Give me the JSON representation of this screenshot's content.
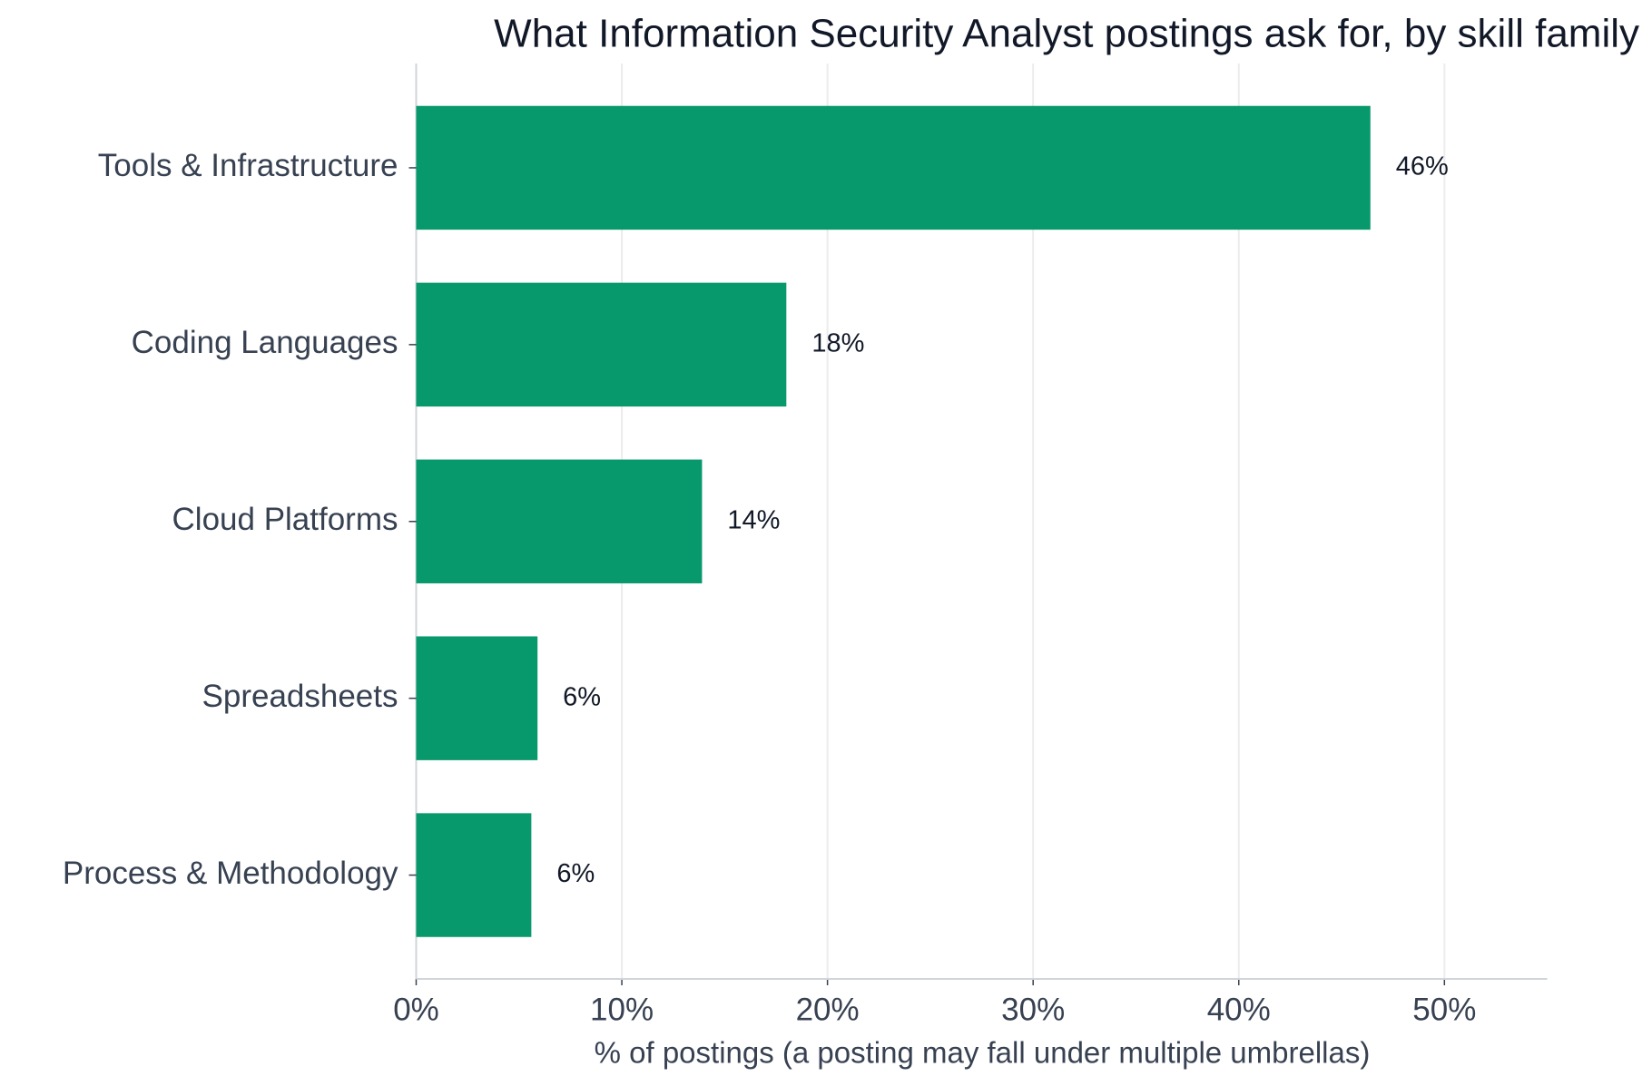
{
  "chart_data": {
    "type": "barh",
    "title": "What Information Security Analyst postings ask for, by skill family",
    "x_label": "% of postings (a posting may fall under multiple umbrellas)",
    "categories": [
      "Tools & Infrastructure",
      "Coding Languages",
      "Cloud Platforms",
      "Spreadsheets",
      "Process & Methodology"
    ],
    "values": [
      46.4,
      18.0,
      13.9,
      5.9,
      5.6
    ],
    "value_labels": [
      "46%",
      "18%",
      "14%",
      "6%",
      "6%"
    ],
    "color": "#07986b",
    "xlim": [
      0,
      55
    ],
    "xticks": [
      {
        "value": 0,
        "label": "0%"
      },
      {
        "value": 10,
        "label": "10%"
      },
      {
        "value": 20,
        "label": "20%"
      },
      {
        "value": 30,
        "label": "30%"
      },
      {
        "value": 40,
        "label": "40%"
      },
      {
        "value": 50,
        "label": "50%"
      }
    ],
    "grid": true
  }
}
